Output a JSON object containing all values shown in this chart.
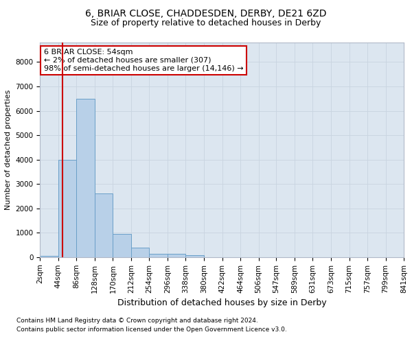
{
  "title": "6, BRIAR CLOSE, CHADDESDEN, DERBY, DE21 6ZD",
  "subtitle": "Size of property relative to detached houses in Derby",
  "xlabel": "Distribution of detached houses by size in Derby",
  "ylabel": "Number of detached properties",
  "footer_line1": "Contains HM Land Registry data © Crown copyright and database right 2024.",
  "footer_line2": "Contains public sector information licensed under the Open Government Licence v3.0.",
  "bar_color": "#b8d0e8",
  "bar_edge_color": "#6a9fc8",
  "background_color": "#dce6f0",
  "annotation_box_facecolor": "#ffffff",
  "annotation_border_color": "#cc0000",
  "vline_color": "#cc0000",
  "annotation_line1": "6 BRIAR CLOSE: 54sqm",
  "annotation_line2": "← 2% of detached houses are smaller (307)",
  "annotation_line3": "98% of semi-detached houses are larger (14,146) →",
  "property_size": 54,
  "bin_edges": [
    2,
    44,
    86,
    128,
    170,
    212,
    254,
    296,
    338,
    380,
    422,
    464,
    506,
    547,
    589,
    631,
    673,
    715,
    757,
    799,
    841
  ],
  "bin_labels": [
    "2sqm",
    "44sqm",
    "86sqm",
    "128sqm",
    "170sqm",
    "212sqm",
    "254sqm",
    "296sqm",
    "338sqm",
    "380sqm",
    "422sqm",
    "464sqm",
    "506sqm",
    "547sqm",
    "589sqm",
    "631sqm",
    "673sqm",
    "715sqm",
    "757sqm",
    "799sqm",
    "841sqm"
  ],
  "bar_heights": [
    55,
    4000,
    6500,
    2600,
    950,
    380,
    130,
    130,
    75,
    0,
    0,
    0,
    0,
    0,
    0,
    0,
    0,
    0,
    0,
    0
  ],
  "ylim": [
    0,
    8800
  ],
  "yticks": [
    0,
    1000,
    2000,
    3000,
    4000,
    5000,
    6000,
    7000,
    8000
  ],
  "grid_color": "#c8d4e0",
  "title_fontsize": 10,
  "subtitle_fontsize": 9,
  "ylabel_fontsize": 8,
  "xlabel_fontsize": 9,
  "tick_fontsize": 7.5,
  "footer_fontsize": 6.5,
  "annot_fontsize": 8
}
